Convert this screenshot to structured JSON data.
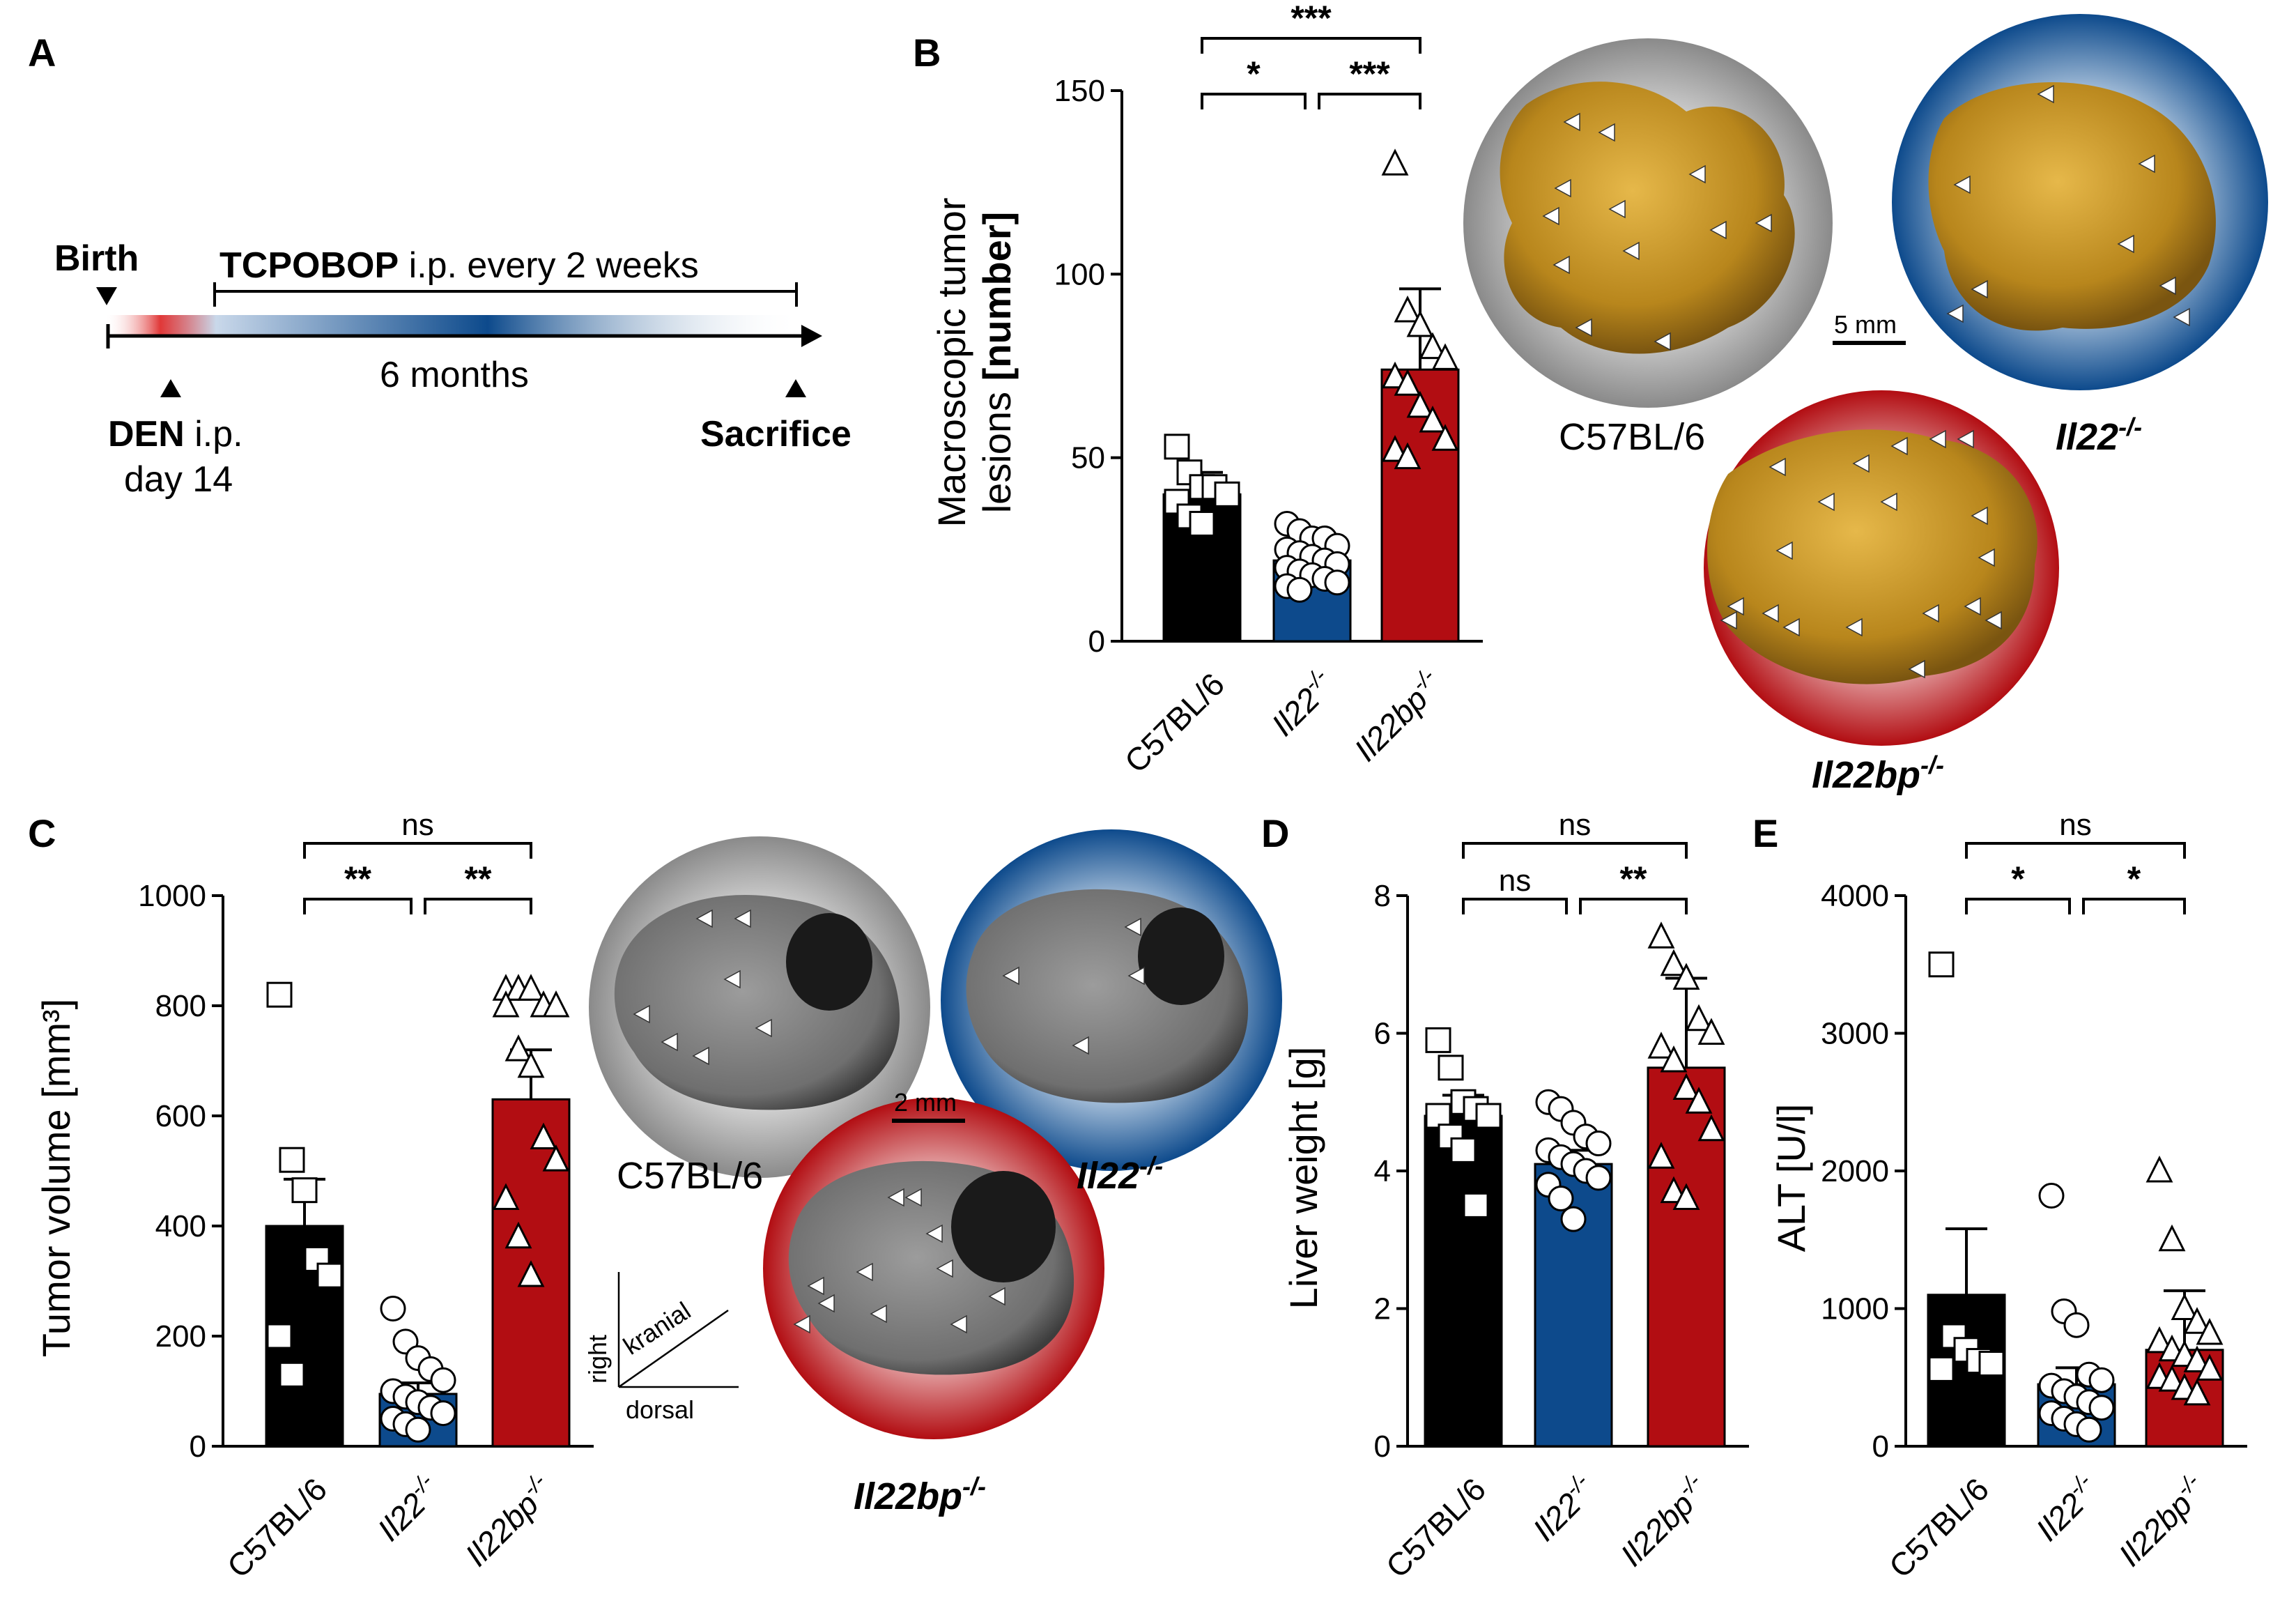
{
  "panels": {
    "A": {
      "letter": "A",
      "birth_label": "Birth",
      "tcpobop_bold": "TCPOBOP",
      "tcpobop_rest": " i.p. every 2 weeks",
      "duration_label": "6 months",
      "den_bold": "DEN",
      "den_rest": " i.p.",
      "den_day": "day 14",
      "sacrifice_label": "Sacrifice"
    },
    "B": {
      "letter": "B",
      "image_labels": [
        "C57BL/6",
        "Il22-/-",
        "Il22bp-/-"
      ],
      "scale_bar": "5 mm"
    },
    "C": {
      "letter": "C",
      "image_labels": [
        "C57BL/6",
        "Il22-/-",
        "Il22bp-/-"
      ],
      "scale_bar": "2 mm",
      "orientation": {
        "vertical": "right",
        "horizontal": "dorsal",
        "diagonal": "kranial"
      }
    },
    "D": {
      "letter": "D"
    },
    "E": {
      "letter": "E"
    }
  },
  "colors": {
    "c57": "#000000",
    "il22": "#0d4a8c",
    "il22bp": "#b20d12"
  },
  "chart_data": [
    {
      "id": "B",
      "type": "bar",
      "categories": [
        "C57BL/6",
        "Il22-/-",
        "Il22bp-/-"
      ],
      "ylabel_line1": "Macroscopic tumor",
      "ylabel_line2a": "lesions ",
      "ylabel_line2b": "[number]",
      "ylim": [
        0,
        150
      ],
      "yticks": [
        0,
        50,
        100,
        150
      ],
      "values": [
        40,
        22,
        74
      ],
      "errors": [
        6,
        4,
        22
      ],
      "points": [
        [
          53,
          46,
          42,
          42,
          40,
          38,
          34,
          32
        ],
        [
          32,
          30,
          28,
          28,
          26,
          25,
          24,
          23,
          22,
          21,
          20,
          19,
          18,
          17,
          16,
          15,
          14
        ],
        [
          130,
          90,
          86,
          80,
          77,
          72,
          70,
          64,
          60,
          55,
          52,
          50
        ]
      ],
      "markers": [
        "square",
        "circle",
        "triangle"
      ],
      "significance": [
        {
          "from": 0,
          "to": 2,
          "label": "***",
          "level": 2
        },
        {
          "from": 0,
          "to": 1,
          "label": "*",
          "level": 1
        },
        {
          "from": 1,
          "to": 2,
          "label": "***",
          "level": 1
        }
      ]
    },
    {
      "id": "C",
      "type": "bar",
      "categories": [
        "C57BL/6",
        "Il22-/-",
        "Il22bp-/-"
      ],
      "ylabel": "Tumor volume [mm³]",
      "ylim": [
        0,
        1000
      ],
      "yticks": [
        0,
        200,
        400,
        600,
        800,
        1000
      ],
      "values": [
        400,
        95,
        630
      ],
      "errors": [
        85,
        20,
        90
      ],
      "points": [
        [
          820,
          520,
          465,
          340,
          310,
          200,
          130
        ],
        [
          250,
          190,
          160,
          140,
          120,
          100,
          90,
          80,
          70,
          60,
          50,
          40,
          30
        ],
        [
          830,
          830,
          830,
          800,
          800,
          800,
          720,
          690,
          560,
          520,
          450,
          380,
          310
        ]
      ],
      "markers": [
        "square",
        "circle",
        "triangle"
      ],
      "significance": [
        {
          "from": 0,
          "to": 2,
          "label": "ns",
          "level": 2
        },
        {
          "from": 0,
          "to": 1,
          "label": "**",
          "level": 1
        },
        {
          "from": 1,
          "to": 2,
          "label": "**",
          "level": 1
        }
      ]
    },
    {
      "id": "D",
      "type": "bar",
      "categories": [
        "C57BL/6",
        "Il22-/-",
        "Il22bp-/-"
      ],
      "ylabel": "Liver weight [g]",
      "ylim": [
        0,
        8
      ],
      "yticks": [
        0,
        2,
        4,
        6,
        8
      ],
      "values": [
        4.8,
        4.1,
        5.5
      ],
      "errors": [
        0.3,
        0.2,
        1.3
      ],
      "points": [
        [
          5.9,
          5.5,
          5.0,
          4.9,
          4.8,
          4.8,
          4.5,
          4.3,
          3.5
        ],
        [
          5.0,
          4.9,
          4.7,
          4.5,
          4.4,
          4.3,
          4.2,
          4.1,
          4.0,
          3.9,
          3.8,
          3.6,
          3.3
        ],
        [
          7.4,
          7.0,
          6.8,
          6.2,
          6.0,
          5.8,
          5.6,
          5.2,
          5.0,
          4.6,
          4.2,
          3.7,
          3.6
        ]
      ],
      "markers": [
        "square",
        "circle",
        "triangle"
      ],
      "significance": [
        {
          "from": 0,
          "to": 2,
          "label": "ns",
          "level": 2
        },
        {
          "from": 0,
          "to": 1,
          "label": "ns",
          "level": 1
        },
        {
          "from": 1,
          "to": 2,
          "label": "**",
          "level": 1
        }
      ]
    },
    {
      "id": "E",
      "type": "bar",
      "categories": [
        "C57BL/6",
        "Il22-/-",
        "Il22bp-/-"
      ],
      "ylabel": "ALT [U/l]",
      "ylim": [
        0,
        4000
      ],
      "yticks": [
        0,
        1000,
        2000,
        3000,
        4000
      ],
      "values": [
        1100,
        450,
        700
      ],
      "errors": [
        480,
        120,
        430
      ],
      "points": [
        [
          3500,
          800,
          700,
          620,
          600,
          560
        ],
        [
          1820,
          980,
          880,
          520,
          480,
          440,
          400,
          360,
          320,
          280,
          240,
          200,
          160,
          120
        ],
        [
          2000,
          1500,
          1000,
          900,
          820,
          760,
          700,
          660,
          620,
          560,
          500,
          480,
          420,
          380
        ]
      ],
      "markers": [
        "square",
        "circle",
        "triangle"
      ],
      "significance": [
        {
          "from": 0,
          "to": 2,
          "label": "ns",
          "level": 2
        },
        {
          "from": 0,
          "to": 1,
          "label": "*",
          "level": 1
        },
        {
          "from": 1,
          "to": 2,
          "label": "*",
          "level": 1
        }
      ]
    }
  ]
}
